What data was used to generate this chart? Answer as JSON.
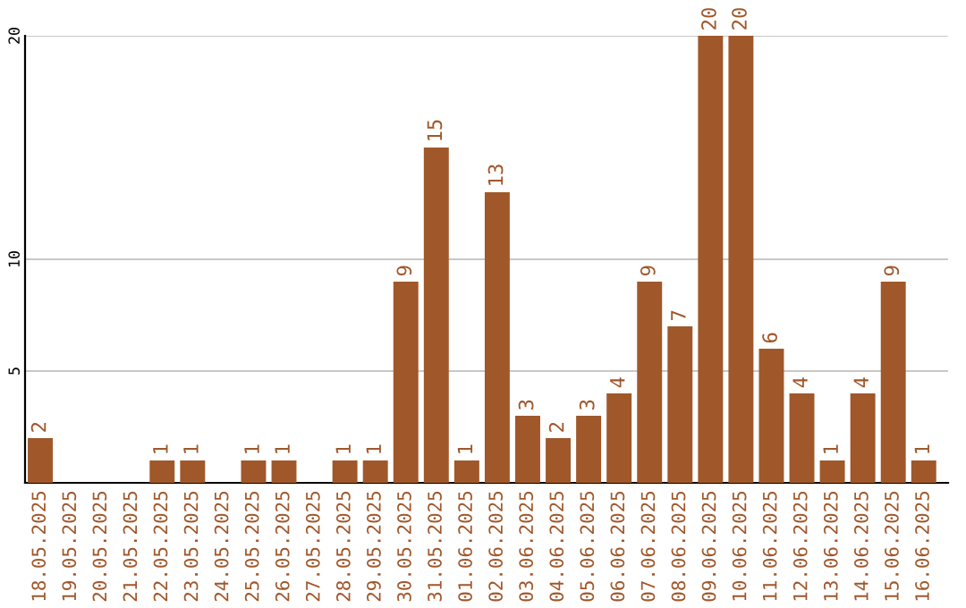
{
  "chart_data": {
    "type": "bar",
    "categories": [
      "18.05.2025",
      "19.05.2025",
      "20.05.2025",
      "21.05.2025",
      "22.05.2025",
      "23.05.2025",
      "24.05.2025",
      "25.05.2025",
      "26.05.2025",
      "27.05.2025",
      "28.05.2025",
      "29.05.2025",
      "30.05.2025",
      "31.05.2025",
      "01.06.2025",
      "02.06.2025",
      "03.06.2025",
      "04.06.2025",
      "05.06.2025",
      "06.06.2025",
      "07.06.2025",
      "08.06.2025",
      "09.06.2025",
      "10.06.2025",
      "11.06.2025",
      "12.06.2025",
      "13.06.2025",
      "14.06.2025",
      "15.06.2025",
      "16.06.2025"
    ],
    "values": [
      2,
      0,
      0,
      0,
      1,
      1,
      0,
      1,
      1,
      0,
      1,
      1,
      9,
      15,
      1,
      13,
      3,
      2,
      3,
      4,
      9,
      7,
      20,
      20,
      6,
      4,
      1,
      4,
      9,
      1
    ],
    "value_labels": [
      "2",
      null,
      null,
      null,
      "1",
      "1",
      null,
      "1",
      "1",
      null,
      "1",
      "1",
      "9",
      "15",
      "1",
      "13",
      "3",
      "2",
      "3",
      "4",
      "9",
      "7",
      "20",
      "20",
      "6",
      "4",
      "1",
      "4",
      "9",
      "1"
    ],
    "color": "#a0572a",
    "ylim": [
      0,
      20
    ],
    "yticks": [
      5,
      10,
      20
    ],
    "grid": "y",
    "legend": false
  }
}
